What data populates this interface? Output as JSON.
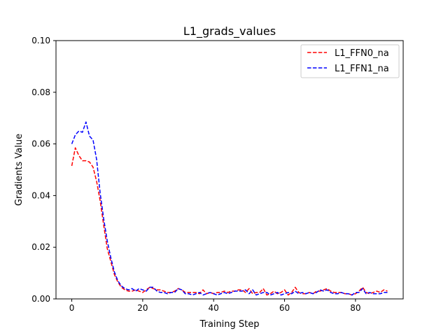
{
  "chart_data": {
    "type": "line",
    "title": "L1_grads_values",
    "xlabel": "Training Step",
    "ylabel": "Gradients Value",
    "xlim": [
      -4.45,
      93.45
    ],
    "ylim": [
      0,
      0.1
    ],
    "xticks": [
      0,
      20,
      40,
      60,
      80
    ],
    "yticks": [
      0.0,
      0.02,
      0.04,
      0.06,
      0.08,
      0.1
    ],
    "ytick_labels": [
      "0.00",
      "0.02",
      "0.04",
      "0.06",
      "0.08",
      "0.10"
    ],
    "grid": false,
    "legend_position": "top-right",
    "series": [
      {
        "name": "L1_FFN0_na",
        "color": "#ff0000",
        "line_style": "dashed",
        "values": [
          0.0515,
          0.0585,
          0.0555,
          0.0535,
          0.0535,
          0.053,
          0.051,
          0.0455,
          0.038,
          0.0285,
          0.0195,
          0.0145,
          0.0095,
          0.0065,
          0.0045,
          0.0035,
          0.003,
          0.003,
          0.0035,
          0.003,
          0.0025,
          0.0035,
          0.0045,
          0.004,
          0.0035,
          0.0035,
          0.003,
          0.0025,
          0.0025,
          0.003,
          0.004,
          0.0035,
          0.0025,
          0.0025,
          0.0025,
          0.0025,
          0.002,
          0.0035,
          0.002,
          0.0025,
          0.002,
          0.0025,
          0.0025,
          0.003,
          0.0025,
          0.003,
          0.003,
          0.0035,
          0.0035,
          0.0025,
          0.004,
          0.002,
          0.0025,
          0.0025,
          0.004,
          0.0015,
          0.002,
          0.003,
          0.002,
          0.0025,
          0.0035,
          0.0015,
          0.0025,
          0.0045,
          0.0025,
          0.002,
          0.002,
          0.0025,
          0.002,
          0.003,
          0.003,
          0.0035,
          0.004,
          0.003,
          0.0025,
          0.0025,
          0.0025,
          0.002,
          0.002,
          0.0015,
          0.002,
          0.003,
          0.0045,
          0.0025,
          0.002,
          0.0025,
          0.003,
          0.0025,
          0.0035,
          0.003
        ]
      },
      {
        "name": "L1_FFN1_na",
        "color": "#0000ff",
        "line_style": "dashed",
        "values": [
          0.06,
          0.0635,
          0.065,
          0.0645,
          0.0685,
          0.063,
          0.0615,
          0.054,
          0.041,
          0.031,
          0.0225,
          0.016,
          0.0105,
          0.007,
          0.005,
          0.004,
          0.0035,
          0.004,
          0.003,
          0.004,
          0.0035,
          0.003,
          0.0045,
          0.0045,
          0.003,
          0.0025,
          0.0025,
          0.002,
          0.0025,
          0.0025,
          0.004,
          0.0035,
          0.002,
          0.002,
          0.0015,
          0.002,
          0.0025,
          0.0015,
          0.002,
          0.0025,
          0.002,
          0.0015,
          0.002,
          0.0025,
          0.002,
          0.0025,
          0.003,
          0.003,
          0.003,
          0.0035,
          0.002,
          0.0035,
          0.0015,
          0.002,
          0.0025,
          0.0025,
          0.0015,
          0.002,
          0.0025,
          0.0015,
          0.002,
          0.0025,
          0.002,
          0.003,
          0.002,
          0.0025,
          0.002,
          0.0025,
          0.002,
          0.0025,
          0.0035,
          0.003,
          0.0035,
          0.0025,
          0.002,
          0.002,
          0.0025,
          0.002,
          0.002,
          0.0015,
          0.0025,
          0.0025,
          0.004,
          0.002,
          0.0025,
          0.002,
          0.002,
          0.002,
          0.0025,
          0.0025
        ]
      }
    ]
  }
}
